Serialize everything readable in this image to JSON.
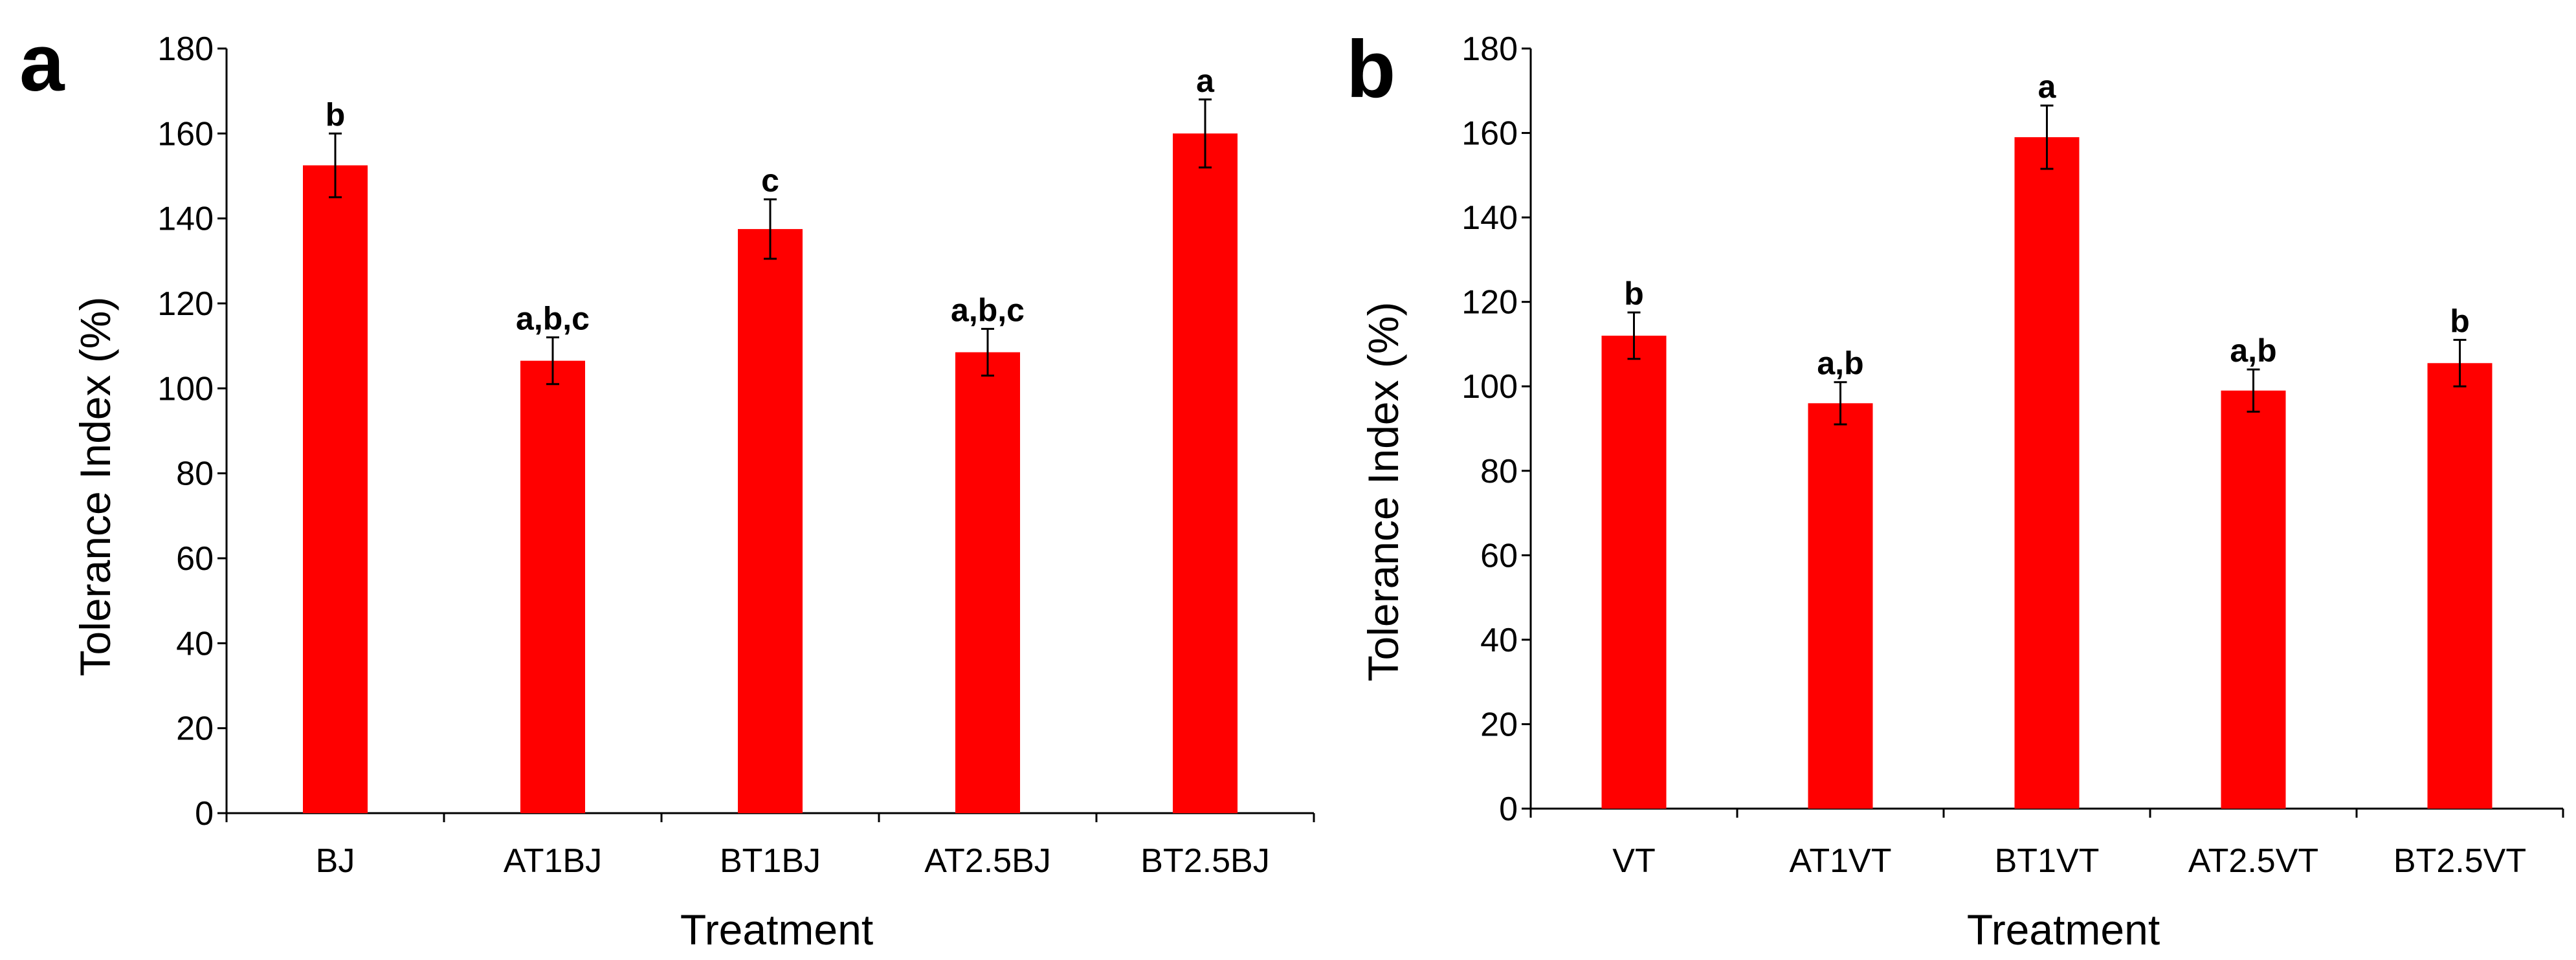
{
  "chart_data": [
    {
      "type": "bar",
      "panel": "a",
      "title": "",
      "xlabel": "Treatment",
      "ylabel": "Tolerance Index (%)",
      "ylim": [
        0,
        180
      ],
      "yticks": [
        0,
        20,
        40,
        60,
        80,
        100,
        120,
        140,
        160,
        180
      ],
      "categories": [
        "BJ",
        "AT1BJ",
        "BT1BJ",
        "AT2.5BJ",
        "BT2.5BJ"
      ],
      "values": [
        152.5,
        106.5,
        137.5,
        108.5,
        160.0
      ],
      "errors": [
        7.5,
        5.5,
        7.0,
        5.5,
        8.0
      ],
      "labels": [
        "b",
        "a,b,c",
        "c",
        "a,b,c",
        "a"
      ],
      "color": "#ff0000",
      "grid": false
    },
    {
      "type": "bar",
      "panel": "b",
      "title": "",
      "xlabel": "Treatment",
      "ylabel": "Tolerance Index (%)",
      "ylim": [
        0,
        180
      ],
      "yticks": [
        0,
        20,
        40,
        60,
        80,
        100,
        120,
        140,
        160,
        180
      ],
      "categories": [
        "VT",
        "AT1VT",
        "BT1VT",
        "AT2.5VT",
        "BT2.5VT"
      ],
      "values": [
        112.0,
        96.0,
        159.0,
        99.0,
        105.5
      ],
      "errors": [
        5.5,
        5.0,
        7.5,
        5.0,
        5.5
      ],
      "labels": [
        "b",
        "a,b",
        "a",
        "a,b",
        "b"
      ],
      "color": "#ff0000",
      "grid": false
    }
  ]
}
